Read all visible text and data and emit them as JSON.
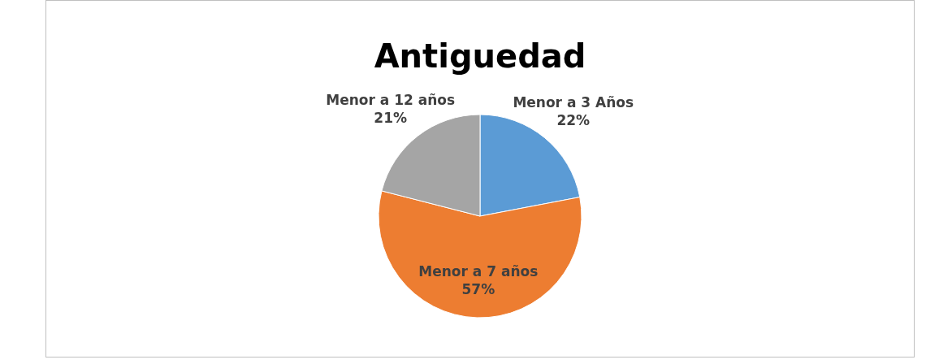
{
  "chart_data": {
    "type": "pie",
    "title": "Antiguedad",
    "categories": [
      "Menor a 3 Años",
      "Menor a 7 años",
      "Menor a 12 años"
    ],
    "values": [
      22,
      57,
      21
    ],
    "colors": [
      "#5b9bd5",
      "#ed7d31",
      "#a5a5a5"
    ],
    "value_labels": [
      "22%",
      "57%",
      "21%"
    ]
  }
}
